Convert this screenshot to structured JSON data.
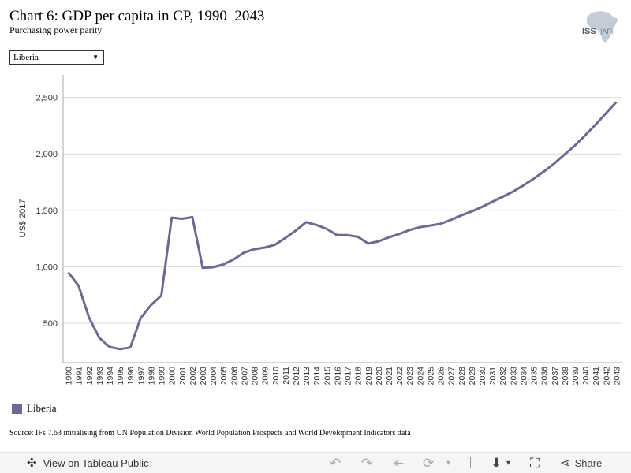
{
  "header": {
    "title": "Chart 6: GDP per capita in CP, 1990–2043",
    "subtitle": "Purchasing power parity",
    "logo_text": "ISS|AFI"
  },
  "filter": {
    "selected": "Liberia"
  },
  "legend": {
    "label": "Liberia"
  },
  "source": "Source: IFs 7.63 initialising from UN Population Division World Population Prospects and World Development Indicators data",
  "toolbar": {
    "view_label": "View on Tableau Public",
    "share_label": "Share"
  },
  "colors": {
    "line": "#6e6798",
    "grid": "#d9d9d9",
    "axis": "#aaaaaa"
  },
  "icons": [
    "tableau-logo-icon",
    "undo-icon",
    "redo-icon",
    "revert-icon",
    "refresh-icon",
    "download-icon",
    "fullscreen-icon",
    "share-icon"
  ],
  "chart_data": {
    "type": "line",
    "ylabel": "US$ 2017",
    "ylim": [
      150,
      2700
    ],
    "yticks": [
      500,
      1000,
      1500,
      2000,
      2500
    ],
    "ytick_labels": [
      "500",
      "1,000",
      "1,500",
      "2,000",
      "2,500"
    ],
    "grid": true,
    "x": [
      1990,
      1991,
      1992,
      1993,
      1994,
      1995,
      1996,
      1997,
      1998,
      1999,
      2000,
      2001,
      2002,
      2003,
      2004,
      2005,
      2006,
      2007,
      2008,
      2009,
      2010,
      2011,
      2012,
      2013,
      2014,
      2015,
      2016,
      2017,
      2018,
      2019,
      2020,
      2021,
      2022,
      2023,
      2024,
      2025,
      2026,
      2027,
      2028,
      2029,
      2030,
      2031,
      2032,
      2033,
      2034,
      2035,
      2036,
      2037,
      2038,
      2039,
      2040,
      2041,
      2042,
      2043
    ],
    "series": [
      {
        "name": "Liberia",
        "values": [
          950,
          830,
          550,
          370,
          290,
          270,
          285,
          545,
          660,
          745,
          1435,
          1425,
          1440,
          990,
          995,
          1020,
          1065,
          1125,
          1155,
          1170,
          1195,
          1255,
          1320,
          1395,
          1370,
          1335,
          1280,
          1280,
          1265,
          1205,
          1225,
          1260,
          1290,
          1325,
          1350,
          1365,
          1380,
          1415,
          1455,
          1490,
          1530,
          1575,
          1620,
          1665,
          1720,
          1780,
          1845,
          1915,
          1995,
          2075,
          2165,
          2260,
          2360,
          2460
        ]
      }
    ]
  }
}
